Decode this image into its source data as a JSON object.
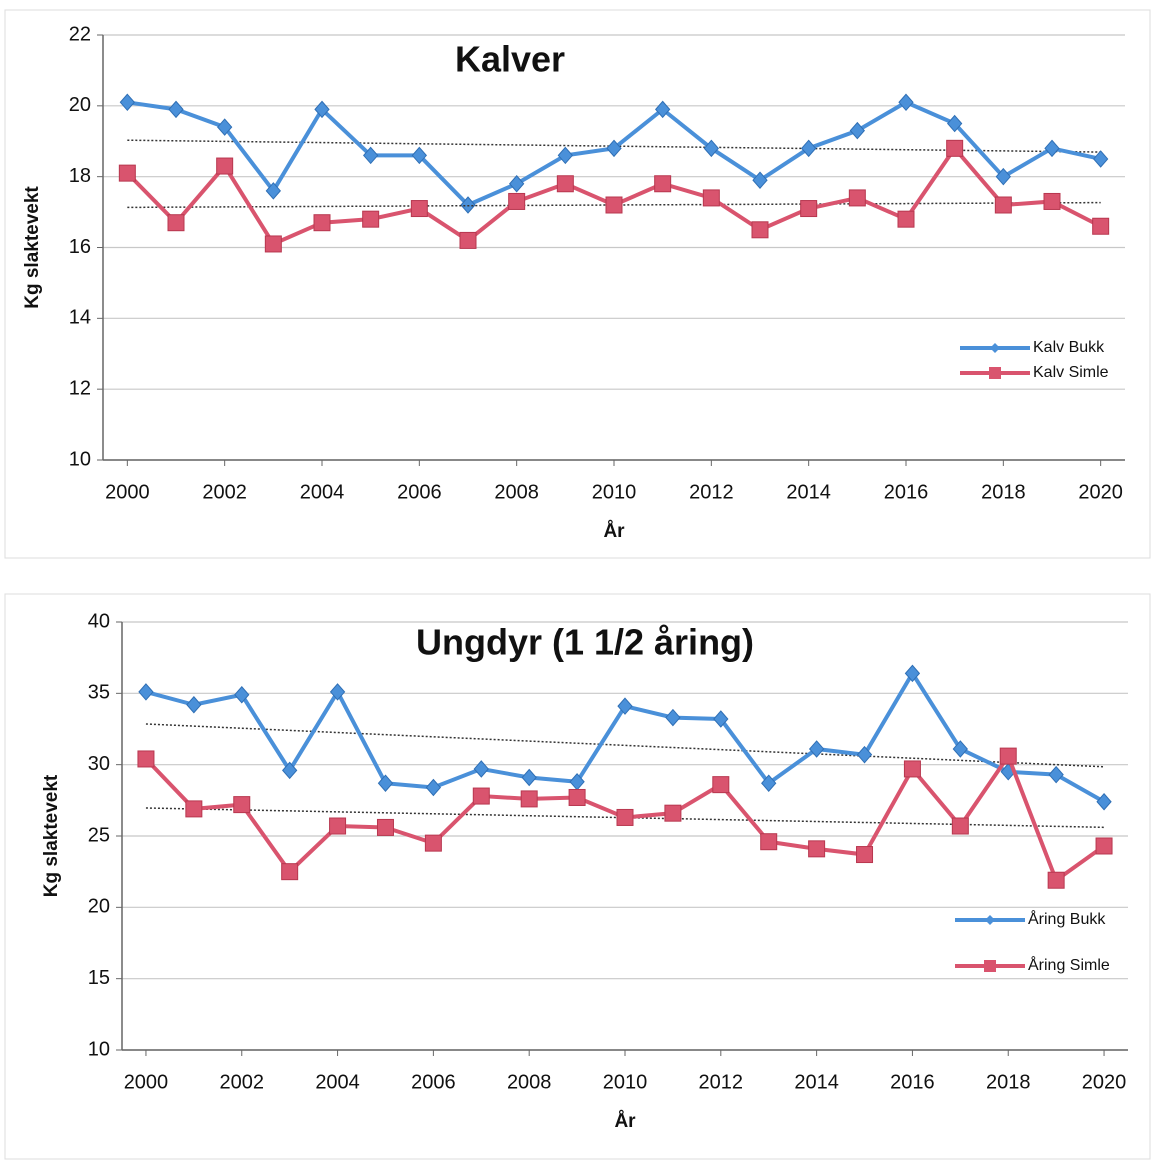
{
  "chart_data": [
    {
      "type": "line",
      "title": "Kalver",
      "y_label": "Kg slaktevekt",
      "x_label": "År",
      "x": [
        2000,
        2001,
        2002,
        2003,
        2004,
        2005,
        2006,
        2007,
        2008,
        2009,
        2010,
        2011,
        2012,
        2013,
        2014,
        2015,
        2016,
        2017,
        2018,
        2019,
        2020
      ],
      "xlim": [
        1999.5,
        2020.5
      ],
      "xticks": [
        2000,
        2002,
        2004,
        2006,
        2008,
        2010,
        2012,
        2014,
        2016,
        2018,
        2020
      ],
      "ylim": [
        10,
        22
      ],
      "yticks": [
        10,
        12,
        14,
        16,
        18,
        20,
        22
      ],
      "grid": true,
      "legend": "right",
      "trendline": "linear",
      "series": [
        {
          "name": "Kalv Bukk",
          "color": "#4a90d9",
          "marker": "diamond",
          "values": [
            20.1,
            19.9,
            19.4,
            17.6,
            19.9,
            18.6,
            18.6,
            17.2,
            17.8,
            18.6,
            18.8,
            19.9,
            18.8,
            17.9,
            18.8,
            19.3,
            20.1,
            19.5,
            18.0,
            18.8,
            18.5
          ]
        },
        {
          "name": "Kalv Simle",
          "color": "#d9546e",
          "marker": "square",
          "values": [
            18.1,
            16.7,
            18.3,
            16.1,
            16.7,
            16.8,
            17.1,
            16.2,
            17.3,
            17.8,
            17.2,
            17.8,
            17.4,
            16.5,
            17.1,
            17.4,
            16.8,
            18.8,
            17.2,
            17.3,
            16.6
          ]
        }
      ]
    },
    {
      "type": "line",
      "title": "Ungdyr (1 1/2 åring)",
      "y_label": "Kg slaktevekt",
      "x_label": "År",
      "x": [
        2000,
        2001,
        2002,
        2003,
        2004,
        2005,
        2006,
        2007,
        2008,
        2009,
        2010,
        2011,
        2012,
        2013,
        2014,
        2015,
        2016,
        2017,
        2018,
        2019,
        2020
      ],
      "xlim": [
        1999.5,
        2020.5
      ],
      "xticks": [
        2000,
        2002,
        2004,
        2006,
        2008,
        2010,
        2012,
        2014,
        2016,
        2018,
        2020
      ],
      "ylim": [
        10,
        40
      ],
      "yticks": [
        10,
        15,
        20,
        25,
        30,
        35,
        40
      ],
      "grid": true,
      "legend": "right",
      "trendline": "linear",
      "series": [
        {
          "name": "Åring Bukk",
          "color": "#4a90d9",
          "marker": "diamond",
          "values": [
            35.1,
            34.2,
            34.9,
            29.6,
            35.1,
            28.7,
            28.4,
            29.7,
            29.1,
            28.8,
            34.1,
            33.3,
            33.2,
            28.7,
            31.1,
            30.7,
            36.4,
            31.1,
            29.5,
            29.3,
            27.4
          ]
        },
        {
          "name": "Åring Simle",
          "color": "#d9546e",
          "marker": "square",
          "values": [
            30.4,
            26.9,
            27.2,
            22.5,
            25.7,
            25.6,
            24.5,
            27.8,
            27.6,
            27.7,
            26.3,
            26.6,
            28.6,
            24.6,
            24.1,
            23.7,
            29.7,
            25.7,
            30.6,
            21.9,
            24.3
          ]
        }
      ]
    }
  ]
}
